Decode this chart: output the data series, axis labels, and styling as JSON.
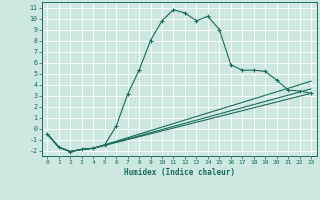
{
  "xlabel": "Humidex (Indice chaleur)",
  "bg_color": "#cce8e0",
  "grid_color": "#b0d8cc",
  "line_color": "#1a6b5a",
  "xlim": [
    -0.5,
    23.5
  ],
  "ylim": [
    -2.5,
    11.5
  ],
  "xticks": [
    0,
    1,
    2,
    3,
    4,
    5,
    6,
    7,
    8,
    9,
    10,
    11,
    12,
    13,
    14,
    15,
    16,
    17,
    18,
    19,
    20,
    21,
    22,
    23
  ],
  "yticks": [
    -2,
    -1,
    0,
    1,
    2,
    3,
    4,
    5,
    6,
    7,
    8,
    9,
    10,
    11
  ],
  "series1_x": [
    0,
    1,
    2,
    3,
    4,
    5,
    6,
    7,
    8,
    9,
    10,
    11,
    12,
    13,
    14,
    15,
    16,
    17,
    18,
    19,
    20,
    21,
    22,
    23
  ],
  "series1_y": [
    -0.5,
    -1.7,
    -2.1,
    -1.9,
    -1.8,
    -1.5,
    0.2,
    3.1,
    5.3,
    8.0,
    9.8,
    10.8,
    10.5,
    9.8,
    10.2,
    9.0,
    5.8,
    5.3,
    5.3,
    5.2,
    4.4,
    3.5,
    3.4,
    3.2
  ],
  "series2_x": [
    0,
    1,
    2,
    3,
    4,
    23
  ],
  "series2_y": [
    -0.5,
    -1.7,
    -2.1,
    -1.9,
    -1.8,
    3.2
  ],
  "series3_x": [
    0,
    1,
    2,
    3,
    4,
    23
  ],
  "series3_y": [
    -0.5,
    -1.7,
    -2.1,
    -1.9,
    -1.8,
    3.6
  ],
  "series4_x": [
    0,
    1,
    2,
    3,
    4,
    23
  ],
  "series4_y": [
    -0.5,
    -1.7,
    -2.1,
    -1.9,
    -1.8,
    4.3
  ]
}
